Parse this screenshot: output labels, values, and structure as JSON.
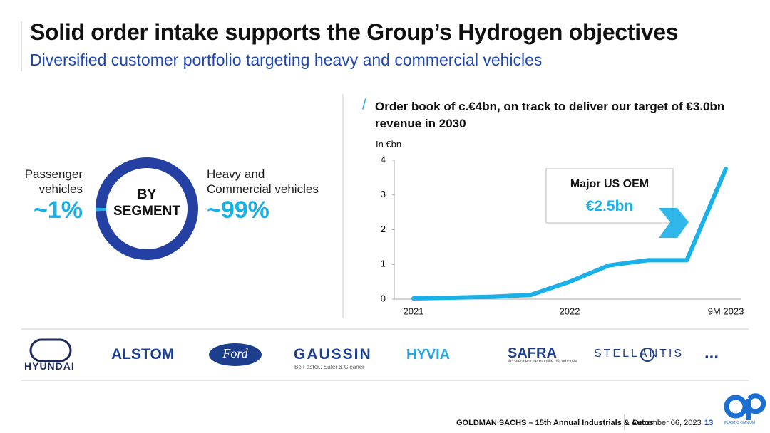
{
  "header": {
    "title": "Solid order intake supports the Group’s Hydrogen objectives",
    "subtitle": "Diversified customer portfolio targeting heavy and commercial vehicles"
  },
  "chart_data": [
    {
      "type": "pie",
      "center_label": "BY SEGMENT",
      "categories": [
        "Passenger vehicles",
        "Heavy and Commercial vehicles"
      ],
      "values": [
        1,
        99
      ],
      "value_labels": [
        "~1%",
        "~99%"
      ],
      "colors": [
        "#1ab0e8",
        "#2540a3"
      ]
    },
    {
      "type": "line",
      "title": "Order book of c.€4bn, on track to deliver our target of €3.0bn revenue in 2030",
      "ylabel": "In €bn",
      "categories": [
        "2021",
        null,
        null,
        null,
        "2022",
        null,
        null,
        null,
        "9M 2023"
      ],
      "series": [
        {
          "name": "Order book",
          "color": "#1ab0e8",
          "values": [
            0.02,
            0.04,
            0.07,
            0.12,
            0.5,
            0.97,
            1.12,
            1.12,
            3.75
          ]
        }
      ],
      "ylim": [
        0,
        4
      ],
      "yticks": [
        0,
        1,
        2,
        3,
        4
      ],
      "annotation": {
        "title": "Major US OEM",
        "value": "€2.5bn"
      }
    }
  ],
  "logos": [
    "HYUNDAI",
    "ALSTOM",
    "Ford",
    "GAUSSIN",
    "Be Faster.. Safer & Cleaner",
    "HYVIA",
    "SAFRA",
    "Accélérateur de mobilité décarbonée",
    "STELLANTIS",
    "..."
  ],
  "footer": {
    "event": "GOLDMAN SACHS – 15th Annual Industrials & Autos",
    "date": "December 06, 2023",
    "page": "13",
    "brand": "PLASTIC OMNIUM"
  }
}
